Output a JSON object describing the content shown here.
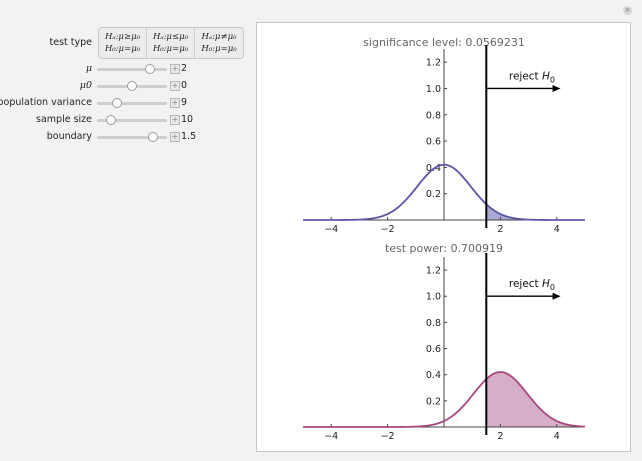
{
  "window": {
    "close_glyph": "×"
  },
  "controls": {
    "test_type": {
      "label": "test type",
      "options": [
        {
          "line1": "Hₐ:μ≥μ₀",
          "line2": "H₀:μ=μ₀",
          "selected": true
        },
        {
          "line1": "Hₐ:μ≤μ₀",
          "line2": "H₀:μ=μ₀",
          "selected": false
        },
        {
          "line1": "Hₐ:μ≠μ₀",
          "line2": "H₀:μ=μ₀",
          "selected": false
        }
      ]
    },
    "sliders": [
      {
        "label": "μ",
        "value": "2",
        "fraction": 0.75
      },
      {
        "label": "μ0",
        "value": "0",
        "fraction": 0.5
      },
      {
        "label": "population variance",
        "value": "9",
        "fraction": 0.28
      },
      {
        "label": "sample size",
        "value": "10",
        "fraction": 0.2
      },
      {
        "label": "boundary",
        "value": "1.5",
        "fraction": 0.8
      }
    ],
    "plus_glyph": "+"
  },
  "plots": {
    "top": {
      "title": "significance level: 0.0569231",
      "reject_label": "reject",
      "reject_sub": "H",
      "reject_sub_index": "0",
      "mean": 0,
      "sd": 0.9487,
      "color": "#5b57a6",
      "fill": "#8f8cc8"
    },
    "bottom": {
      "title": "test power: 0.700919",
      "reject_label": "reject",
      "reject_sub": "H",
      "reject_sub_index": "0",
      "mean": 2,
      "sd": 0.9487,
      "color": "#a8467e",
      "fill": "#c993b5"
    },
    "boundary": 1.5,
    "x_range": [
      -5,
      5
    ],
    "y_range": [
      0,
      1.3
    ],
    "x_ticks": [
      -4,
      -2,
      2,
      4
    ],
    "y_ticks": [
      0.2,
      0.4,
      0.6,
      0.8,
      1.0,
      1.2
    ],
    "x_tick_labels": [
      "−4",
      "−2",
      "2",
      "4"
    ],
    "y_tick_labels": [
      "0.2",
      "0.4",
      "0.6",
      "0.8",
      "1.0",
      "1.2"
    ]
  }
}
